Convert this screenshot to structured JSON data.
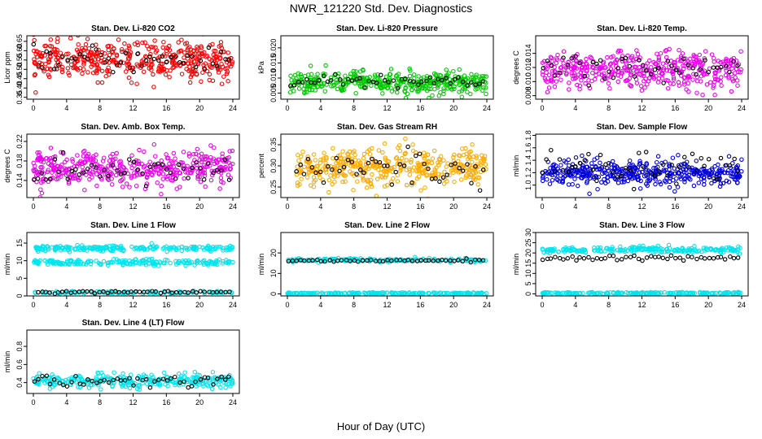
{
  "page": {
    "title": "NWR_121220  Std. Dev. Diagnostics",
    "xlabel": "Hour of Day (UTC)"
  },
  "chart_data": [
    {
      "type": "scatter",
      "title": "Stan. Dev. Li-820 CO2",
      "ylabel": "Licor ppm",
      "xlim": [
        0,
        24
      ],
      "ylim": [
        0.34,
        0.68
      ],
      "xticks": [
        "0",
        "4",
        "8",
        "12",
        "16",
        "20",
        "24"
      ],
      "yticks": [
        "0.35",
        "0.40",
        "0.45",
        "0.50",
        "0.55",
        "0.60",
        "0.65"
      ],
      "color": "#ff0000",
      "series": [
        {
          "values_desc": "main",
          "x_range": [
            0,
            24
          ],
          "center": 0.55,
          "spread": 0.05,
          "n": 420
        },
        {
          "values_desc": "black",
          "x_range": [
            0,
            24
          ],
          "center": 0.55,
          "spread": 0.035,
          "n": 48
        }
      ]
    },
    {
      "type": "scatter",
      "title": "Stan. Dev. Li-820 Pressure",
      "ylabel": "kPa",
      "xlim": [
        0,
        24
      ],
      "ylim": [
        0.003,
        0.024
      ],
      "xticks": [
        "0",
        "4",
        "8",
        "12",
        "16",
        "20",
        "24"
      ],
      "yticks": [
        "0.005",
        "0.010",
        "0.015",
        "0.020"
      ],
      "color": "#00cc00",
      "series": [
        {
          "values_desc": "main",
          "x_range": [
            0.3,
            24
          ],
          "center": 0.0085,
          "spread": 0.0018,
          "n": 420
        },
        {
          "values_desc": "black",
          "x_range": [
            0.3,
            24
          ],
          "center": 0.009,
          "spread": 0.0012,
          "n": 48
        }
      ]
    },
    {
      "type": "scatter",
      "title": "Stan. Dev. Li-820 Temp.",
      "ylabel": "degrees C",
      "xlim": [
        0,
        24
      ],
      "ylim": [
        0.0075,
        0.0165
      ],
      "xticks": [
        "0",
        "4",
        "8",
        "12",
        "16",
        "20",
        "24"
      ],
      "yticks": [
        "0.008",
        "0.010",
        "0.012",
        "0.014"
      ],
      "color": "#ee00ee",
      "series": [
        {
          "values_desc": "main",
          "x_range": [
            0,
            24
          ],
          "center": 0.0115,
          "spread": 0.0013,
          "n": 420
        },
        {
          "values_desc": "black",
          "x_range": [
            0,
            24
          ],
          "center": 0.0118,
          "spread": 0.0009,
          "n": 48
        }
      ]
    },
    {
      "type": "scatter",
      "title": "Stan. Dev. Amb. Box Temp.",
      "ylabel": "degrees C",
      "xlim": [
        0,
        24
      ],
      "ylim": [
        0.105,
        0.235
      ],
      "xticks": [
        "0",
        "4",
        "8",
        "12",
        "16",
        "20",
        "24"
      ],
      "yticks": [
        "0.14",
        "0.18",
        "0.22"
      ],
      "color": "#ee00ee",
      "series": [
        {
          "values_desc": "main",
          "x_range": [
            0,
            24
          ],
          "center": 0.165,
          "spread": 0.018,
          "n": 420
        },
        {
          "values_desc": "black",
          "x_range": [
            0,
            24
          ],
          "center": 0.16,
          "spread": 0.015,
          "n": 48
        }
      ]
    },
    {
      "type": "scatter",
      "title": "Stan. Dev. Gas Stream RH",
      "ylabel": "percent",
      "xlim": [
        0,
        24
      ],
      "ylim": [
        0.225,
        0.375
      ],
      "xticks": [
        "0",
        "4",
        "8",
        "12",
        "16",
        "20",
        "24"
      ],
      "yticks": [
        "0.25",
        "0.30",
        "0.35"
      ],
      "color": "#ffaa00",
      "series": [
        {
          "values_desc": "main",
          "x_range": [
            1,
            24
          ],
          "center": 0.295,
          "spread": 0.022,
          "n": 420
        },
        {
          "values_desc": "black",
          "x_range": [
            1,
            24
          ],
          "center": 0.295,
          "spread": 0.02,
          "n": 48
        }
      ]
    },
    {
      "type": "scatter",
      "title": "Stan. Dev. Sample Flow",
      "ylabel": "ml/min",
      "xlim": [
        0,
        24
      ],
      "ylim": [
        0.8,
        1.82
      ],
      "xticks": [
        "0",
        "4",
        "8",
        "12",
        "16",
        "20",
        "24"
      ],
      "yticks": [
        "1.0",
        "1.2",
        "1.4",
        "1.6",
        "1.8"
      ],
      "color": "#0000dd",
      "series": [
        {
          "values_desc": "main",
          "x_range": [
            0,
            24
          ],
          "center": 1.2,
          "spread": 0.1,
          "n": 420
        },
        {
          "values_desc": "black",
          "x_range": [
            0,
            24
          ],
          "center": 1.3,
          "spread": 0.13,
          "n": 48
        }
      ]
    },
    {
      "type": "scatter",
      "title": "Stan. Dev. Line 1 Flow",
      "ylabel": "ml/min",
      "xlim": [
        0,
        24
      ],
      "ylim": [
        0,
        18
      ],
      "xticks": [
        "0",
        "4",
        "8",
        "12",
        "16",
        "20",
        "24"
      ],
      "yticks": [
        "0",
        "5",
        "10",
        "15"
      ],
      "color": "#00e5ee",
      "series": [
        {
          "values_desc": "band-high",
          "x_range": [
            0,
            24
          ],
          "center": 13.5,
          "spread": 0.4,
          "n": 200
        },
        {
          "values_desc": "band-mid",
          "x_range": [
            0,
            24
          ],
          "center": 9.5,
          "spread": 0.4,
          "n": 200
        },
        {
          "values_desc": "band-low",
          "x_range": [
            0,
            24
          ],
          "center": 1.0,
          "spread": 0.2,
          "n": 120
        },
        {
          "values_desc": "black",
          "x_range": [
            0.5,
            24
          ],
          "center": 1.1,
          "spread": 0.15,
          "n": 48
        }
      ]
    },
    {
      "type": "scatter",
      "title": "Stan. Dev. Line 2 Flow",
      "ylabel": "ml/min",
      "xlim": [
        0,
        24
      ],
      "ylim": [
        -1,
        30
      ],
      "xticks": [
        "0",
        "4",
        "8",
        "12",
        "16",
        "20",
        "24"
      ],
      "yticks": [
        "0",
        "10",
        "20"
      ],
      "color": "#00e5ee",
      "series": [
        {
          "values_desc": "band-high",
          "x_range": [
            0,
            24
          ],
          "center": 16.5,
          "spread": 0.4,
          "n": 200
        },
        {
          "values_desc": "band-low",
          "x_range": [
            0,
            24
          ],
          "center": 0.3,
          "spread": 0.2,
          "n": 200
        },
        {
          "values_desc": "black",
          "x_range": [
            0,
            24
          ],
          "center": 16.3,
          "spread": 0.3,
          "n": 48
        }
      ]
    },
    {
      "type": "scatter",
      "title": "Stan. Dev. Line 3 Flow",
      "ylabel": "ml/min",
      "xlim": [
        0,
        24
      ],
      "ylim": [
        -1,
        30
      ],
      "xticks": [
        "0",
        "4",
        "8",
        "12",
        "16",
        "20",
        "24"
      ],
      "yticks": [
        "0",
        "5",
        "10",
        "15",
        "20",
        "25",
        "30"
      ],
      "color": "#00e5ee",
      "series": [
        {
          "values_desc": "band-high",
          "x_range": [
            0,
            24
          ],
          "center": 21.5,
          "spread": 0.8,
          "n": 220
        },
        {
          "values_desc": "band-low",
          "x_range": [
            0,
            24
          ],
          "center": 0.4,
          "spread": 0.2,
          "n": 200
        },
        {
          "values_desc": "black",
          "x_range": [
            0,
            24
          ],
          "center": 17.5,
          "spread": 0.6,
          "n": 48
        }
      ]
    },
    {
      "type": "scatter",
      "title": "Stan. Dev. Line 4 (LT) Flow",
      "ylabel": "ml/min",
      "xlim": [
        0,
        24
      ],
      "ylim": [
        0.28,
        0.98
      ],
      "xticks": [
        "0",
        "4",
        "8",
        "12",
        "16",
        "20",
        "24"
      ],
      "yticks": [
        "0.4",
        "0.6",
        "0.8"
      ],
      "color": "#00e5ee",
      "series": [
        {
          "values_desc": "main",
          "x_range": [
            0,
            24
          ],
          "center": 0.42,
          "spread": 0.035,
          "n": 300
        },
        {
          "values_desc": "black",
          "x_range": [
            0,
            24
          ],
          "center": 0.42,
          "spread": 0.035,
          "n": 48
        }
      ]
    }
  ]
}
